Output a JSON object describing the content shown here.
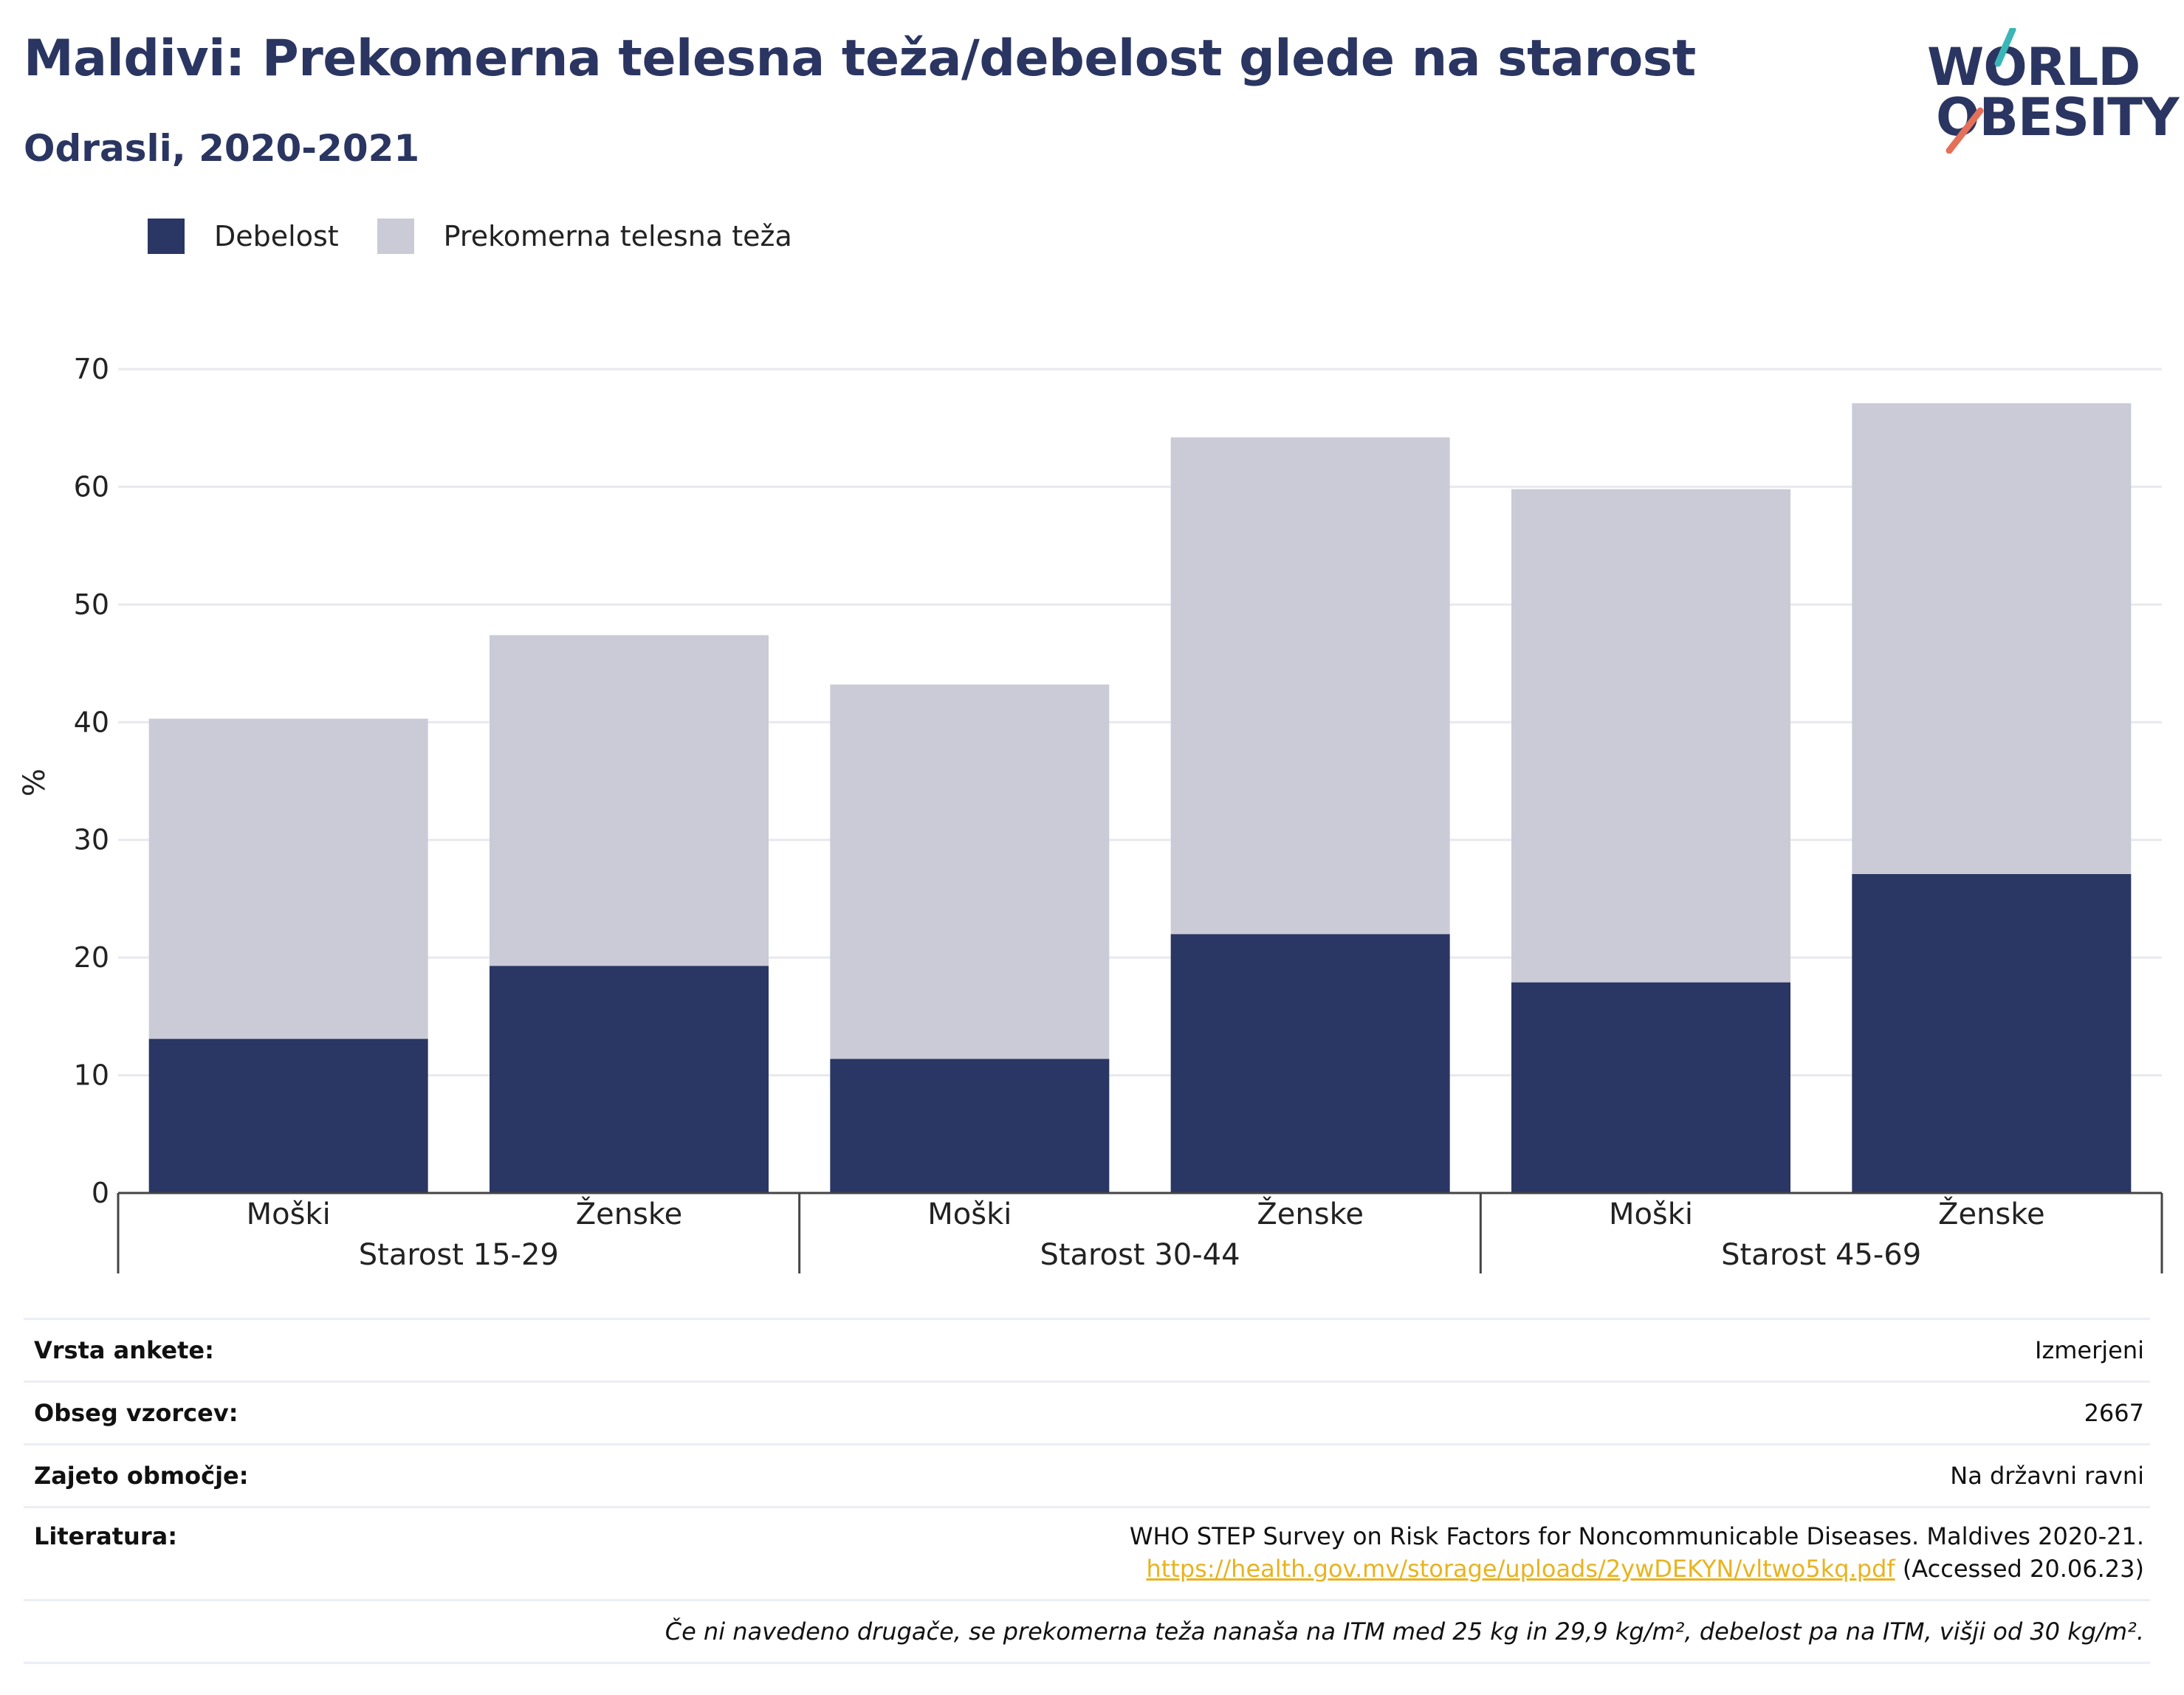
{
  "header": {
    "title": "Maldivi: Prekomerna telesna teža/debelost glede na starost",
    "subtitle": "Odrasli, 2020-2021"
  },
  "logo": {
    "line1": "WORLD",
    "line2": "OBESITY"
  },
  "legend": [
    {
      "label": "Debelost",
      "color": "#2a3663"
    },
    {
      "label": "Prekomerna telesna teža",
      "color": "#cacbd7"
    }
  ],
  "chart_data": {
    "type": "bar",
    "stacked": true,
    "ylabel": "%",
    "ylim": [
      0,
      70
    ],
    "yticks": [
      0,
      10,
      20,
      30,
      40,
      50,
      60,
      70
    ],
    "grid": true,
    "legend_position": "top-left",
    "groups": [
      "Starost 15-29",
      "Starost 30-44",
      "Starost 45-69"
    ],
    "categories": [
      "Moški",
      "Ženske",
      "Moški",
      "Ženske",
      "Moški",
      "Ženske"
    ],
    "series": [
      {
        "name": "Debelost",
        "color": "#2a3663",
        "values": [
          13.1,
          19.3,
          11.4,
          22.0,
          17.9,
          27.1
        ]
      },
      {
        "name": "Prekomerna telesna teža",
        "color": "#cacbd7",
        "values": [
          27.2,
          28.1,
          31.8,
          42.2,
          41.9,
          40.0
        ]
      }
    ]
  },
  "info": {
    "survey_type_label": "Vrsta ankete:",
    "survey_type": "Izmerjeni",
    "sample_label": "Obseg vzorcev:",
    "sample": "2667",
    "coverage_label": "Zajeto območje:",
    "coverage": "Na državni ravni",
    "ref_label": "Literatura:",
    "ref_text": "WHO STEP Survey on Risk Factors for Noncommunicable Diseases. Maldives 2020-21.",
    "ref_link": "https://health.gov.mv/storage/uploads/2ywDEKYN/vltwo5kq.pdf",
    "ref_accessed": " (Accessed 20.06.23)",
    "note": "Če ni navedeno drugače, se prekomerna teža nanaša na ITM med 25 kg in 29,9 kg/m², debelost pa na ITM, višji od 30 kg/m²."
  }
}
